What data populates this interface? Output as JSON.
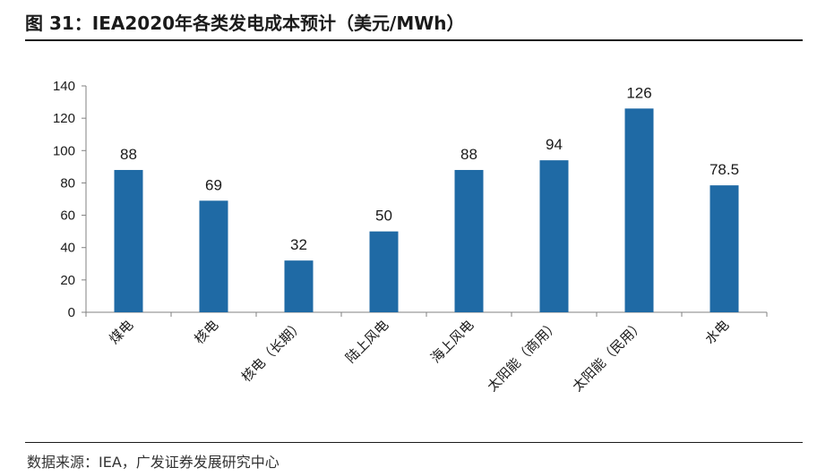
{
  "figure": {
    "title": "图 31：IEA2020年各类发电成本预计（美元/MWh）",
    "source": "数据来源：IEA，广发证券发展研究中心"
  },
  "chart_data": {
    "type": "bar",
    "title": "",
    "xlabel": "",
    "ylabel": "",
    "categories": [
      "煤电",
      "核电",
      "核电（长期）",
      "陆上风电",
      "海上风电",
      "太阳能（商用）",
      "太阳能（民用）",
      "水电"
    ],
    "values": [
      88,
      69,
      32,
      50,
      88,
      94,
      126,
      78.5
    ],
    "data_labels": [
      "88",
      "69",
      "32",
      "50",
      "88",
      "94",
      "126",
      "78.5"
    ],
    "ylim": [
      0,
      140
    ],
    "yticks": [
      0,
      20,
      40,
      60,
      80,
      100,
      120,
      140
    ],
    "ytick_labels": [
      "0",
      "20",
      "40",
      "60",
      "80",
      "100",
      "120",
      "140"
    ],
    "grid": false,
    "legend": "none",
    "bar_color": "#1f6aa5"
  }
}
